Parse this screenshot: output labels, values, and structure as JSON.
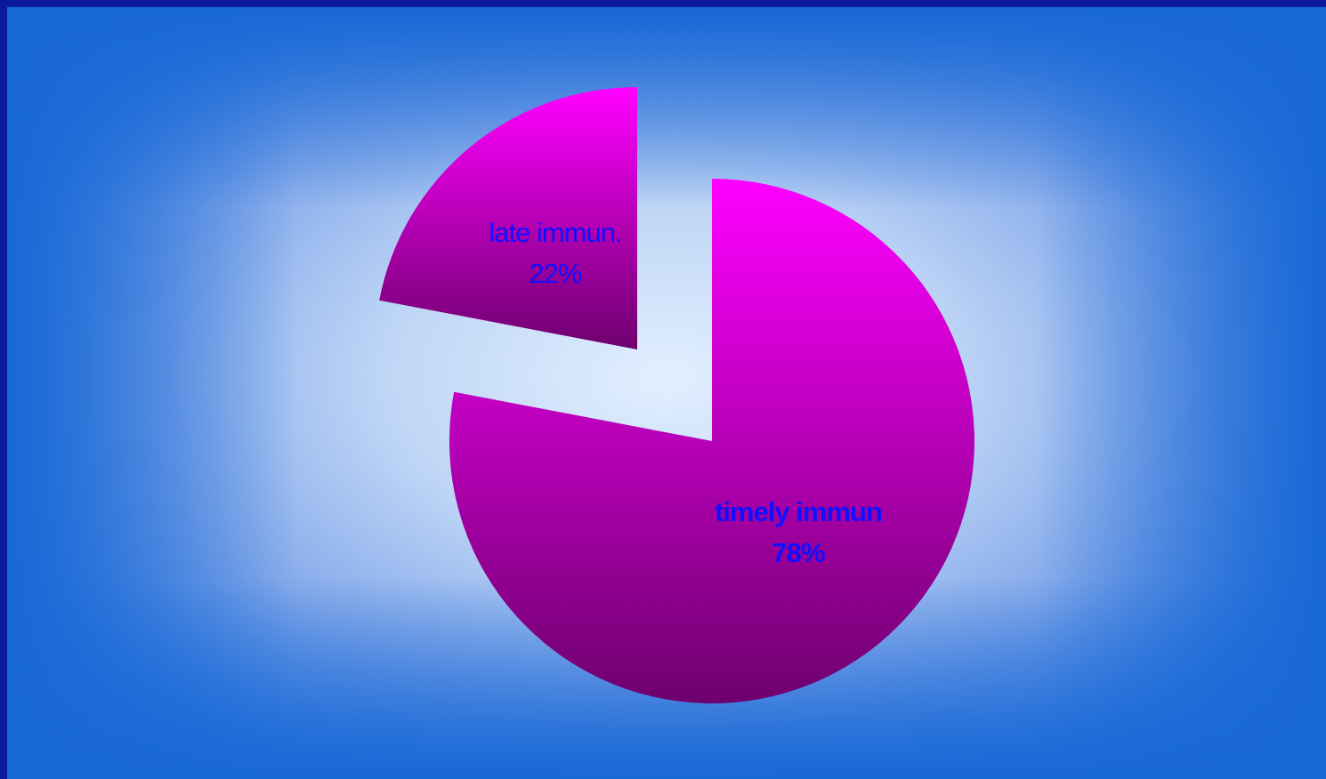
{
  "chart_data": {
    "type": "pie",
    "exploded": true,
    "slices": [
      {
        "label": "timely immun",
        "percent_label": "78%",
        "value": 78,
        "bold": true
      },
      {
        "label": "late immun.",
        "percent_label": "22%",
        "value": 22,
        "bold": false
      }
    ],
    "legend": "none",
    "colors": {
      "slice_top": "#ff00ff",
      "slice_bottom": "#6e006e",
      "label": "#1010ff"
    }
  }
}
